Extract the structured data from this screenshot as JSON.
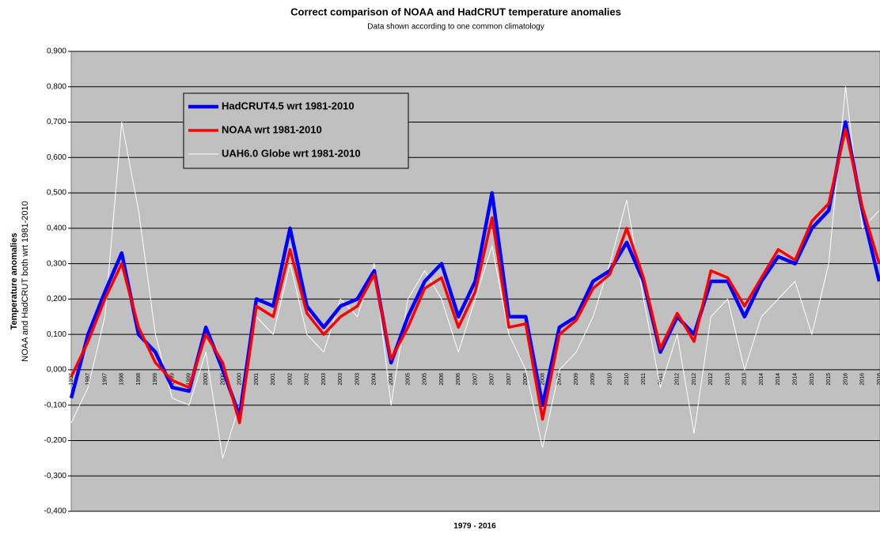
{
  "chart_data": {
    "type": "line",
    "title": "Correct comparison of NOAA and HadCRUT temperature anomalies",
    "subtitle": "Data shown according to one common climatology",
    "x_label": "1979 - 2016",
    "y_label": "Temperature anomalies",
    "y_label_2": "NOAA and HadCRUT both wrt 1981-2010",
    "categories": [
      "1997",
      "1997",
      "1997",
      "1998",
      "1998",
      "1999",
      "1999",
      "1999",
      "2000",
      "2000",
      "2000",
      "2001",
      "2001",
      "2002",
      "2002",
      "2003",
      "2003",
      "2003",
      "2004",
      "2004",
      "2005",
      "2005",
      "2006",
      "2006",
      "2007",
      "2007",
      "2007",
      "2008",
      "2008",
      "2009",
      "2009",
      "2009",
      "2010",
      "2010",
      "2011",
      "2011",
      "2012",
      "2012",
      "2012",
      "2013",
      "2013",
      "2014",
      "2014",
      "2014",
      "2015",
      "2015",
      "2016",
      "2016",
      "2016"
    ],
    "series": [
      {
        "name": "HadCRUT4.5 wrt 1981-2010",
        "color": "#0000ff",
        "values": [
          -0.08,
          0.1,
          0.22,
          0.33,
          0.1,
          0.05,
          -0.05,
          -0.06,
          0.12,
          0.0,
          -0.13,
          0.2,
          0.18,
          0.4,
          0.18,
          0.12,
          0.18,
          0.2,
          0.28,
          0.02,
          0.15,
          0.25,
          0.3,
          0.15,
          0.25,
          0.5,
          0.15,
          0.15,
          -0.1,
          0.12,
          0.15,
          0.25,
          0.28,
          0.36,
          0.25,
          0.05,
          0.15,
          0.1,
          0.25,
          0.25,
          0.15,
          0.25,
          0.32,
          0.3,
          0.4,
          0.45,
          0.7,
          0.45,
          0.25
        ]
      },
      {
        "name": "NOAA wrt 1981-2010",
        "color": "#ff0000",
        "values": [
          -0.02,
          0.08,
          0.2,
          0.3,
          0.12,
          0.02,
          -0.03,
          -0.05,
          0.1,
          0.02,
          -0.15,
          0.18,
          0.15,
          0.34,
          0.16,
          0.1,
          0.15,
          0.18,
          0.27,
          0.03,
          0.12,
          0.23,
          0.26,
          0.12,
          0.22,
          0.43,
          0.12,
          0.13,
          -0.14,
          0.1,
          0.14,
          0.23,
          0.27,
          0.4,
          0.26,
          0.06,
          0.16,
          0.08,
          0.28,
          0.26,
          0.18,
          0.26,
          0.34,
          0.31,
          0.42,
          0.47,
          0.68,
          0.46,
          0.3
        ]
      },
      {
        "name": "UAH6.0 Globe wrt 1981-2010",
        "color": "#ffffff",
        "values": [
          -0.15,
          -0.05,
          0.15,
          0.7,
          0.45,
          0.1,
          -0.08,
          -0.1,
          0.05,
          -0.25,
          -0.1,
          0.15,
          0.1,
          0.3,
          0.1,
          0.05,
          0.2,
          0.15,
          0.3,
          -0.1,
          0.2,
          0.28,
          0.2,
          0.05,
          0.2,
          0.35,
          0.1,
          0.0,
          -0.22,
          0.0,
          0.05,
          0.15,
          0.3,
          0.48,
          0.2,
          -0.05,
          0.1,
          -0.18,
          0.15,
          0.2,
          0.0,
          0.15,
          0.2,
          0.25,
          0.1,
          0.3,
          0.8,
          0.4,
          0.45
        ]
      }
    ],
    "ylim": [
      -0.4,
      0.9
    ],
    "yticks": [
      {
        "value": -0.4,
        "label": "-0,400"
      },
      {
        "value": -0.3,
        "label": "-0,300"
      },
      {
        "value": -0.2,
        "label": "-0,200"
      },
      {
        "value": -0.1,
        "label": "-0,100"
      },
      {
        "value": 0,
        "label": "0,000"
      },
      {
        "value": 0.1,
        "label": "0,100"
      },
      {
        "value": 0.2,
        "label": "0,200"
      },
      {
        "value": 0.3,
        "label": "0,300"
      },
      {
        "value": 0.4,
        "label": "0,400"
      },
      {
        "value": 0.5,
        "label": "0,500"
      },
      {
        "value": 0.6,
        "label": "0,600"
      },
      {
        "value": 0.7,
        "label": "0,700"
      },
      {
        "value": 0.8,
        "label": "0,800"
      },
      {
        "value": 0.9,
        "label": "0,900"
      }
    ],
    "grid": true,
    "legend": "upper left"
  }
}
